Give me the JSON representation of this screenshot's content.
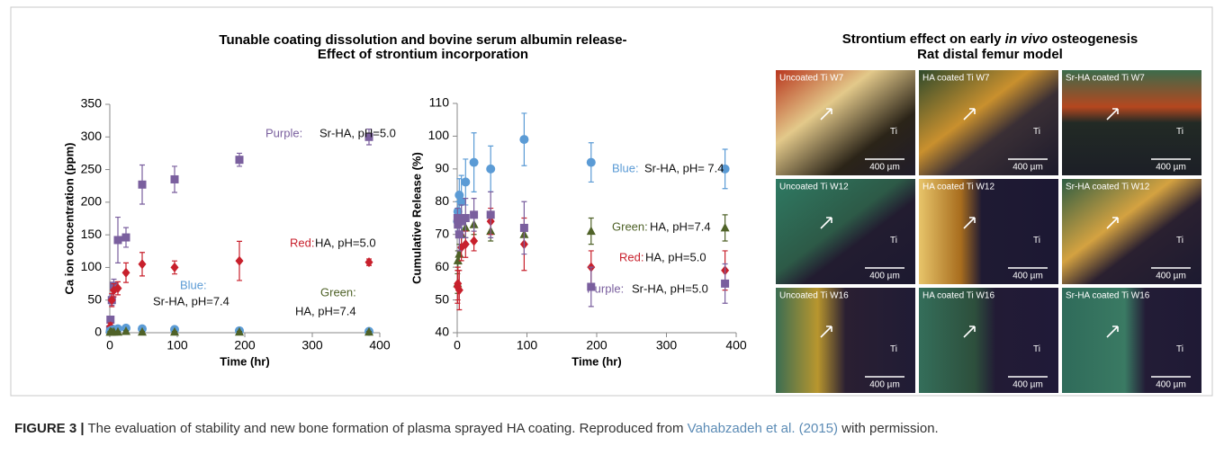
{
  "left_title": [
    "Tunable coating dissolution and bovine serum albumin release-",
    "Effect of strontium incorporation"
  ],
  "right_title": {
    "lead": "Strontium effect on early",
    "italic": "in vivo",
    "tail": "osteogenesis",
    "line2": "Rat distal femur model"
  },
  "chart_data": [
    {
      "type": "scatter",
      "x_label": "Time (hr)",
      "y_label": "Ca ion concentration (ppm)",
      "x": [
        0.5,
        1,
        3,
        6,
        12,
        24,
        48,
        96,
        192,
        384
      ],
      "xlim": [
        0,
        400
      ],
      "xticks": [
        0,
        100,
        200,
        300,
        400
      ],
      "ylim": [
        0,
        350
      ],
      "yticks": [
        0,
        50,
        100,
        150,
        200,
        250,
        300,
        350
      ],
      "series": [
        {
          "label": [
            "Purple:",
            "Sr-HA, pH=5.0"
          ],
          "color": "#7a5f9e",
          "marker": "square",
          "values": [
            5,
            20,
            50,
            72,
            142,
            146,
            227,
            235,
            265,
            300
          ],
          "errors": [
            3,
            5,
            8,
            10,
            35,
            15,
            30,
            20,
            10,
            12
          ]
        },
        {
          "label": [
            "Red:",
            "HA, pH=5.0"
          ],
          "color": "#c8202c",
          "marker": "diamond",
          "values": [
            3,
            10,
            50,
            65,
            68,
            92,
            105,
            100,
            110,
            108
          ],
          "errors": [
            2,
            5,
            10,
            10,
            10,
            15,
            18,
            10,
            30,
            5
          ]
        },
        {
          "label": [
            "Blue:",
            "Sr-HA, pH=7.4"
          ],
          "color": "#5b9bd5",
          "marker": "circle",
          "values": [
            2,
            3,
            4,
            5,
            6,
            7,
            6,
            5,
            3,
            2
          ],
          "errors": [
            1,
            1,
            1,
            1,
            1,
            2,
            2,
            1,
            1,
            1
          ]
        },
        {
          "label": [
            "Green:",
            "HA, pH=7.4"
          ],
          "color": "#4f6228",
          "marker": "triangle",
          "values": [
            1,
            1,
            1,
            1,
            1,
            2,
            1,
            1,
            1,
            1
          ],
          "errors": [
            1,
            1,
            1,
            1,
            1,
            1,
            1,
            1,
            1,
            1
          ]
        }
      ]
    },
    {
      "type": "scatter",
      "x_label": "Time (hr)",
      "y_label": "Cumulative Release (%)",
      "x": [
        0.5,
        1,
        3,
        6,
        12,
        24,
        48,
        96,
        192,
        384
      ],
      "xlim": [
        0,
        400
      ],
      "xticks": [
        0,
        100,
        200,
        300,
        400
      ],
      "ylim": [
        40,
        110
      ],
      "yticks": [
        40,
        50,
        60,
        70,
        80,
        90,
        100,
        110
      ],
      "series": [
        {
          "label": [
            "Blue:",
            "Sr-HA, pH= 7.4"
          ],
          "color": "#5b9bd5",
          "marker": "circle",
          "values": [
            74,
            77,
            82,
            80,
            86,
            92,
            90,
            99,
            92,
            90
          ],
          "errors": [
            3,
            3,
            5,
            8,
            7,
            9,
            7,
            8,
            6,
            6
          ]
        },
        {
          "label": [
            "Green:",
            "HA, pH=7.4"
          ],
          "color": "#4f6228",
          "marker": "triangle",
          "values": [
            55,
            62,
            64,
            70,
            72,
            73,
            71,
            70,
            71,
            72
          ],
          "errors": [
            3,
            3,
            3,
            3,
            3,
            3,
            3,
            3,
            4,
            4
          ]
        },
        {
          "label": [
            "Red:",
            "HA, pH=5.0"
          ],
          "color": "#c8202c",
          "marker": "diamond",
          "values": [
            54,
            55,
            53,
            66,
            67,
            68,
            74,
            67,
            60,
            59
          ],
          "errors": [
            5,
            5,
            6,
            4,
            4,
            3,
            4,
            8,
            5,
            6
          ]
        },
        {
          "label": [
            "Purple:",
            "Sr-HA, pH=5.0"
          ],
          "color": "#7a5f9e",
          "marker": "square",
          "values": [
            75,
            73,
            70,
            74,
            75,
            76,
            76,
            72,
            54,
            55
          ],
          "errors": [
            3,
            3,
            5,
            5,
            6,
            5,
            7,
            8,
            6,
            6
          ]
        }
      ]
    }
  ],
  "panels": [
    {
      "title": "Uncoated Ti W7",
      "ti": "Ti",
      "scale": "400 µm"
    },
    {
      "title": "HA coated Ti W7",
      "ti": "Ti",
      "scale": "400 µm"
    },
    {
      "title": "Sr-HA coated Ti W7",
      "ti": "Ti",
      "scale": "400 µm"
    },
    {
      "title": "Uncoated Ti W12",
      "ti": "Ti",
      "scale": "400 µm"
    },
    {
      "title": "HA coated Ti W12",
      "ti": "Ti",
      "scale": "400 µm"
    },
    {
      "title": "Sr-HA coated Ti W12",
      "ti": "Ti",
      "scale": "400 µm"
    },
    {
      "title": "Uncoated Ti W16",
      "ti": "Ti",
      "scale": "400 µm"
    },
    {
      "title": "HA coated Ti W16",
      "ti": "Ti",
      "scale": "400 µm"
    },
    {
      "title": "Sr-HA coated Ti W16",
      "ti": "Ti",
      "scale": "400 µm"
    }
  ],
  "caption": {
    "label": "FIGURE 3 |",
    "text": "The evaluation of stability and new bone formation of plasma sprayed HA coating. Reproduced from",
    "link": "Vahabzadeh et al. (2015)",
    "tail": "with permission."
  }
}
